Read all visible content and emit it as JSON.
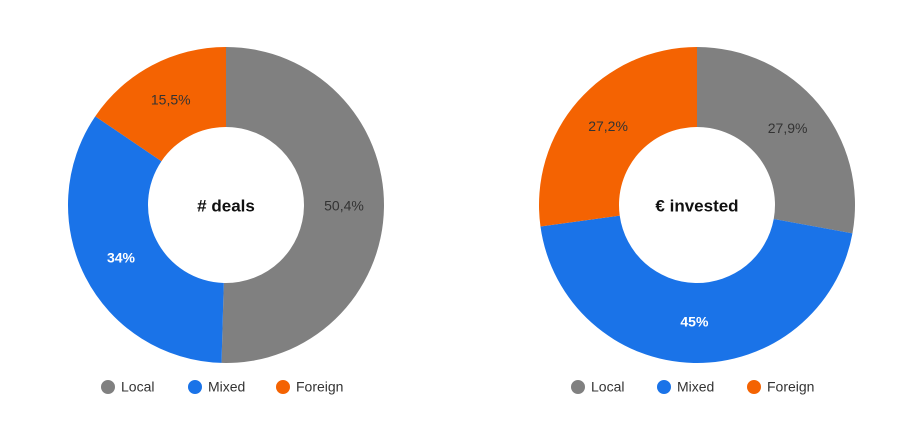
{
  "chart_data": [
    {
      "type": "pie",
      "title": "# deals",
      "categories": [
        "Local",
        "Mixed",
        "Foreign"
      ],
      "values": [
        50.4,
        34,
        15.5
      ],
      "value_labels": [
        "50,4%",
        "34%",
        "15,5%"
      ],
      "colors": [
        "#808080",
        "#1a73e8",
        "#f46302"
      ],
      "legend": "bottom"
    },
    {
      "type": "pie",
      "title": "€ invested",
      "categories": [
        "Local",
        "Mixed",
        "Foreign"
      ],
      "values": [
        27.9,
        45,
        27.2
      ],
      "value_labels": [
        "27,9%",
        "45%",
        "27,2%"
      ],
      "colors": [
        "#808080",
        "#1a73e8",
        "#f46302"
      ],
      "legend": "bottom"
    }
  ]
}
